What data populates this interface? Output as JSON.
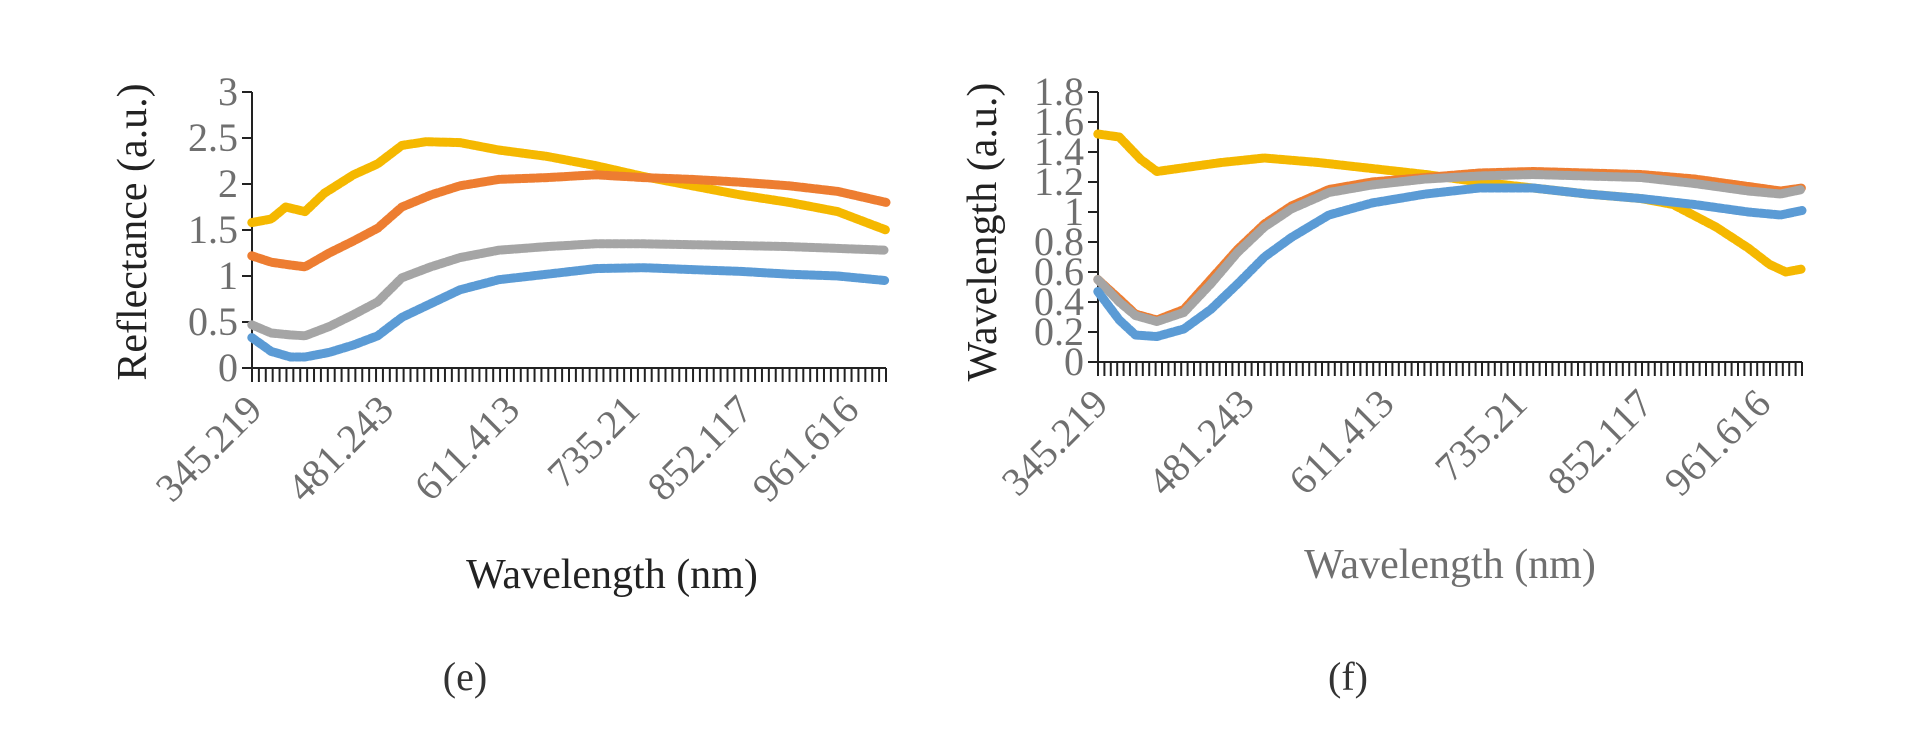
{
  "chart_data": [
    {
      "type": "line",
      "panel": "(e)",
      "ylabel": "Reflectance (a.u.)",
      "xlabel": "Wavelength (nm)",
      "x_range": [
        345.219,
        1000
      ],
      "ylim": [
        0,
        3
      ],
      "yticks": [
        "0",
        "0.5",
        "1",
        "1.5",
        "2",
        "2.5",
        "3"
      ],
      "xtick_labels": [
        {
          "value": 345.219,
          "label": "345.219"
        },
        {
          "value": 481.243,
          "label": "481.243"
        },
        {
          "value": 611.413,
          "label": "611.413"
        },
        {
          "value": 735.21,
          "label": "735.21"
        },
        {
          "value": 852.117,
          "label": "852.117"
        },
        {
          "value": 961.616,
          "label": "961.616"
        }
      ],
      "grid": false,
      "legend": "none",
      "series": [
        {
          "color": "#F5B800",
          "points": [
            [
              345,
              1.58
            ],
            [
              365,
              1.62
            ],
            [
              380,
              1.75
            ],
            [
              400,
              1.7
            ],
            [
              420,
              1.9
            ],
            [
              450,
              2.1
            ],
            [
              475,
              2.22
            ],
            [
              500,
              2.42
            ],
            [
              525,
              2.46
            ],
            [
              560,
              2.45
            ],
            [
              600,
              2.37
            ],
            [
              650,
              2.3
            ],
            [
              700,
              2.2
            ],
            [
              750,
              2.08
            ],
            [
              800,
              1.98
            ],
            [
              850,
              1.88
            ],
            [
              900,
              1.8
            ],
            [
              950,
              1.7
            ],
            [
              1000,
              1.5
            ]
          ]
        },
        {
          "color": "#ED7D31",
          "points": [
            [
              345,
              1.22
            ],
            [
              365,
              1.15
            ],
            [
              385,
              1.12
            ],
            [
              400,
              1.1
            ],
            [
              425,
              1.25
            ],
            [
              450,
              1.38
            ],
            [
              475,
              1.52
            ],
            [
              500,
              1.75
            ],
            [
              530,
              1.88
            ],
            [
              560,
              1.98
            ],
            [
              600,
              2.05
            ],
            [
              650,
              2.07
            ],
            [
              700,
              2.1
            ],
            [
              750,
              2.07
            ],
            [
              800,
              2.05
            ],
            [
              850,
              2.02
            ],
            [
              900,
              1.98
            ],
            [
              950,
              1.92
            ],
            [
              1000,
              1.8
            ]
          ]
        },
        {
          "color": "#A5A5A5",
          "points": [
            [
              345,
              0.47
            ],
            [
              365,
              0.38
            ],
            [
              385,
              0.36
            ],
            [
              400,
              0.35
            ],
            [
              425,
              0.45
            ],
            [
              450,
              0.58
            ],
            [
              475,
              0.72
            ],
            [
              500,
              0.98
            ],
            [
              530,
              1.1
            ],
            [
              560,
              1.2
            ],
            [
              600,
              1.28
            ],
            [
              650,
              1.32
            ],
            [
              700,
              1.35
            ],
            [
              750,
              1.35
            ],
            [
              800,
              1.34
            ],
            [
              850,
              1.33
            ],
            [
              900,
              1.32
            ],
            [
              950,
              1.3
            ],
            [
              1000,
              1.28
            ]
          ]
        },
        {
          "color": "#5B9BD5",
          "points": [
            [
              345,
              0.33
            ],
            [
              365,
              0.18
            ],
            [
              385,
              0.12
            ],
            [
              400,
              0.12
            ],
            [
              425,
              0.17
            ],
            [
              450,
              0.25
            ],
            [
              475,
              0.35
            ],
            [
              500,
              0.55
            ],
            [
              530,
              0.7
            ],
            [
              560,
              0.85
            ],
            [
              600,
              0.96
            ],
            [
              650,
              1.02
            ],
            [
              700,
              1.08
            ],
            [
              750,
              1.09
            ],
            [
              800,
              1.07
            ],
            [
              850,
              1.05
            ],
            [
              900,
              1.02
            ],
            [
              950,
              1.0
            ],
            [
              1000,
              0.95
            ]
          ]
        }
      ]
    },
    {
      "type": "line",
      "panel": "(f)",
      "ylabel": "Wavelength (a.u.)",
      "xlabel": "Wavelength (nm)",
      "x_range": [
        345.219,
        1000
      ],
      "ylim": [
        0,
        1.8
      ],
      "yticks": [
        "0",
        "0.2",
        "0.4",
        "0.6",
        "0.8",
        "1",
        "1.2",
        "1.4",
        "1.6",
        "1.8"
      ],
      "xtick_labels": [
        {
          "value": 345.219,
          "label": "345.219"
        },
        {
          "value": 481.243,
          "label": "481.243"
        },
        {
          "value": 611.413,
          "label": "611.413"
        },
        {
          "value": 735.21,
          "label": "735.21"
        },
        {
          "value": 852.117,
          "label": "852.117"
        },
        {
          "value": 961.616,
          "label": "961.616"
        }
      ],
      "grid": false,
      "legend": "none",
      "series": [
        {
          "color": "#F5B800",
          "points": [
            [
              345,
              1.52
            ],
            [
              365,
              1.5
            ],
            [
              385,
              1.35
            ],
            [
              400,
              1.27
            ],
            [
              430,
              1.3
            ],
            [
              460,
              1.33
            ],
            [
              500,
              1.36
            ],
            [
              550,
              1.33
            ],
            [
              600,
              1.29
            ],
            [
              650,
              1.25
            ],
            [
              700,
              1.2
            ],
            [
              750,
              1.16
            ],
            [
              800,
              1.12
            ],
            [
              850,
              1.09
            ],
            [
              880,
              1.05
            ],
            [
              920,
              0.9
            ],
            [
              950,
              0.76
            ],
            [
              970,
              0.65
            ],
            [
              985,
              0.6
            ],
            [
              1000,
              0.62
            ]
          ]
        },
        {
          "color": "#ED7D31",
          "points": [
            [
              345,
              0.55
            ],
            [
              365,
              0.42
            ],
            [
              380,
              0.32
            ],
            [
              400,
              0.28
            ],
            [
              425,
              0.35
            ],
            [
              450,
              0.55
            ],
            [
              475,
              0.75
            ],
            [
              500,
              0.92
            ],
            [
              525,
              1.04
            ],
            [
              560,
              1.15
            ],
            [
              600,
              1.2
            ],
            [
              650,
              1.23
            ],
            [
              700,
              1.26
            ],
            [
              750,
              1.27
            ],
            [
              800,
              1.26
            ],
            [
              850,
              1.25
            ],
            [
              900,
              1.22
            ],
            [
              950,
              1.17
            ],
            [
              980,
              1.14
            ],
            [
              1000,
              1.16
            ]
          ]
        },
        {
          "color": "#A5A5A5",
          "points": [
            [
              345,
              0.55
            ],
            [
              365,
              0.4
            ],
            [
              380,
              0.31
            ],
            [
              400,
              0.27
            ],
            [
              425,
              0.33
            ],
            [
              450,
              0.52
            ],
            [
              475,
              0.73
            ],
            [
              500,
              0.9
            ],
            [
              525,
              1.02
            ],
            [
              560,
              1.13
            ],
            [
              600,
              1.18
            ],
            [
              650,
              1.22
            ],
            [
              700,
              1.24
            ],
            [
              750,
              1.25
            ],
            [
              800,
              1.24
            ],
            [
              850,
              1.23
            ],
            [
              900,
              1.19
            ],
            [
              950,
              1.14
            ],
            [
              980,
              1.12
            ],
            [
              1000,
              1.15
            ]
          ]
        },
        {
          "color": "#5B9BD5",
          "points": [
            [
              345,
              0.47
            ],
            [
              365,
              0.28
            ],
            [
              380,
              0.18
            ],
            [
              400,
              0.17
            ],
            [
              425,
              0.22
            ],
            [
              450,
              0.35
            ],
            [
              475,
              0.52
            ],
            [
              500,
              0.7
            ],
            [
              525,
              0.83
            ],
            [
              560,
              0.98
            ],
            [
              600,
              1.06
            ],
            [
              650,
              1.12
            ],
            [
              700,
              1.16
            ],
            [
              750,
              1.16
            ],
            [
              800,
              1.12
            ],
            [
              850,
              1.09
            ],
            [
              900,
              1.05
            ],
            [
              950,
              1.0
            ],
            [
              980,
              0.98
            ],
            [
              1000,
              1.01
            ]
          ]
        }
      ]
    }
  ]
}
